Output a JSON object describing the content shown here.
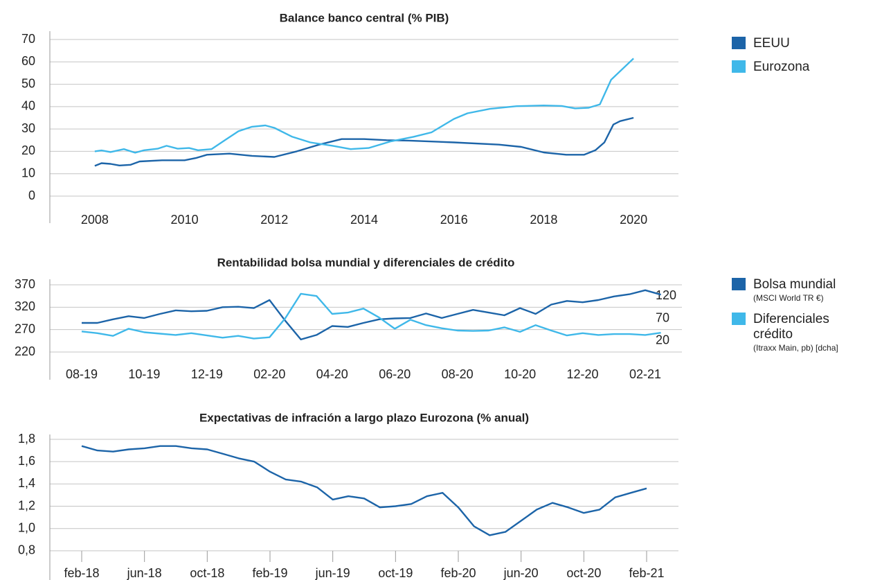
{
  "chart_data": [
    {
      "type": "line",
      "title": "Balance banco central (% PIB)",
      "xlim": [
        2007,
        2021
      ],
      "xticks": [
        2008,
        2010,
        2012,
        2014,
        2016,
        2018,
        2020
      ],
      "ylim": [
        0,
        70
      ],
      "yticks": [
        0,
        10,
        20,
        30,
        40,
        50,
        60,
        70
      ],
      "grid": true,
      "legend": "right",
      "series": [
        {
          "name": "EEUU",
          "color": "#1c64a8",
          "x": [
            2008,
            2008.15,
            2008.35,
            2008.55,
            2008.8,
            2009,
            2009.5,
            2010,
            2010.25,
            2010.5,
            2011,
            2011.5,
            2012,
            2012.5,
            2013,
            2013.5,
            2014,
            2014.5,
            2015,
            2016,
            2017,
            2017.5,
            2018,
            2018.5,
            2018.9,
            2019.15,
            2019.35,
            2019.55,
            2019.7,
            2020
          ],
          "values": [
            13.5,
            14.7,
            14.4,
            13.7,
            14.0,
            15.5,
            16.0,
            16.0,
            17.0,
            18.5,
            19.0,
            18.0,
            17.5,
            20.0,
            23.0,
            25.5,
            25.5,
            25.0,
            24.8,
            24.0,
            23.0,
            22.0,
            19.5,
            18.5,
            18.5,
            20.5,
            24.0,
            32.0,
            33.5,
            35.0
          ]
        },
        {
          "name": "Eurozona",
          "color": "#3fb8e9",
          "x": [
            2008,
            2008.15,
            2008.35,
            2008.65,
            2008.9,
            2009.1,
            2009.4,
            2009.6,
            2009.85,
            2010.1,
            2010.3,
            2010.6,
            2010.9,
            2011.2,
            2011.5,
            2011.8,
            2012,
            2012.4,
            2012.8,
            2013.3,
            2013.7,
            2014.1,
            2014.6,
            2015.1,
            2015.5,
            2016,
            2016.3,
            2016.8,
            2017.4,
            2018,
            2018.4,
            2018.7,
            2019,
            2019.25,
            2019.5,
            2020
          ],
          "values": [
            20.0,
            20.4,
            19.7,
            21.0,
            19.4,
            20.5,
            21.2,
            22.5,
            21.2,
            21.5,
            20.5,
            21.0,
            25.0,
            29.0,
            31.0,
            31.6,
            30.5,
            26.5,
            24.0,
            22.5,
            21.0,
            21.5,
            24.5,
            26.5,
            28.5,
            34.5,
            37.0,
            39.0,
            40.2,
            40.5,
            40.3,
            39.2,
            39.5,
            41.0,
            52.0,
            61.5
          ]
        }
      ]
    },
    {
      "type": "line",
      "title": "Rentabilidad bolsa mundial y diferenciales de crédito",
      "categories": [
        "08-19",
        null,
        null,
        null,
        "10-19",
        null,
        null,
        null,
        "12-19",
        null,
        null,
        null,
        "02-20",
        null,
        null,
        null,
        "04-20",
        null,
        null,
        null,
        "06-20",
        null,
        null,
        null,
        "08-20",
        null,
        null,
        null,
        "10-20",
        null,
        null,
        null,
        "12-20",
        null,
        null,
        null,
        "02-21",
        null
      ],
      "ylim": [
        220,
        370
      ],
      "yticks": [
        220,
        270,
        320,
        370
      ],
      "y2lim": [
        -5,
        145
      ],
      "y2ticks": [
        20,
        70,
        120
      ],
      "grid": true,
      "legend": "right",
      "series": [
        {
          "name": "Bolsa mundial",
          "note": "(MSCI World TR €)",
          "color": "#1c64a8",
          "values": [
            285,
            285,
            293,
            300,
            296,
            305,
            313,
            311,
            312,
            320,
            321,
            318,
            336,
            290,
            248,
            258,
            278,
            276,
            285,
            293,
            295,
            296,
            306,
            296,
            305,
            314,
            308,
            302,
            318,
            305,
            326,
            334,
            331,
            336,
            344,
            349,
            358,
            348
          ]
        },
        {
          "name": "Diferenciales crédito",
          "note": "(Itraxx Main, pb) [dcha]",
          "color": "#3fb8e9",
          "axis": "y2",
          "values": [
            41,
            37,
            31,
            47,
            39,
            36,
            33,
            37,
            32,
            27,
            31,
            25,
            28,
            70,
            125,
            120,
            80,
            83,
            92,
            72,
            47,
            67,
            55,
            48,
            43,
            42,
            43,
            50,
            40,
            55,
            43,
            32,
            37,
            33,
            35,
            35,
            33,
            38
          ]
        }
      ]
    },
    {
      "type": "line",
      "title": "Expectativas de infración a largo plazo Eurozona (% anual)",
      "categories": [
        "feb-18",
        null,
        null,
        null,
        "jun-18",
        null,
        null,
        null,
        "oct-18",
        null,
        null,
        null,
        "feb-19",
        null,
        null,
        null,
        "jun-19",
        null,
        null,
        null,
        "oct-19",
        null,
        null,
        null,
        "feb-20",
        null,
        null,
        null,
        "jun-20",
        null,
        null,
        null,
        "oct-20",
        null,
        null,
        null,
        "feb-21"
      ],
      "ylim": [
        0.7,
        1.8
      ],
      "yticks": [
        {
          "value": 0.8,
          "label": "0,8"
        },
        {
          "value": 1.0,
          "label": "1,0"
        },
        {
          "value": 1.2,
          "label": "1,2"
        },
        {
          "value": 1.4,
          "label": "1,4"
        },
        {
          "value": 1.6,
          "label": "1,6"
        },
        {
          "value": 1.8,
          "label": "1,8"
        }
      ],
      "grid": true,
      "color": "#1c64a8",
      "values": [
        1.74,
        1.7,
        1.69,
        1.71,
        1.72,
        1.74,
        1.74,
        1.72,
        1.71,
        1.67,
        1.63,
        1.6,
        1.51,
        1.44,
        1.42,
        1.37,
        1.26,
        1.29,
        1.27,
        1.19,
        1.2,
        1.22,
        1.29,
        1.32,
        1.19,
        1.02,
        0.94,
        0.97,
        1.07,
        1.17,
        1.23,
        1.19,
        1.14,
        1.17,
        1.28,
        1.32,
        1.36
      ]
    }
  ]
}
